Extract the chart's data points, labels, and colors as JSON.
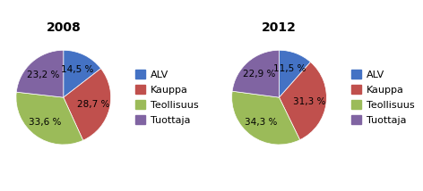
{
  "chart2008": {
    "title": "2008",
    "values": [
      14.5,
      28.7,
      33.6,
      23.2
    ],
    "labels": [
      "14,5 %",
      "28,7 %",
      "33,6 %",
      "23,2 %"
    ]
  },
  "chart2012": {
    "title": "2012",
    "values": [
      11.5,
      31.3,
      34.3,
      22.9
    ],
    "labels": [
      "11,5 %",
      "31,3 %",
      "34,3 %",
      "22,9 %"
    ]
  },
  "legend_labels": [
    "ALV",
    "Kauppa",
    "Teollisuus",
    "Tuottaja"
  ],
  "colors": [
    "#4472C4",
    "#C0504D",
    "#9BBB59",
    "#8064A2"
  ],
  "background_color": "#FFFFFF",
  "title_fontsize": 10,
  "label_fontsize": 7.5,
  "legend_fontsize": 8,
  "startangle": 90
}
